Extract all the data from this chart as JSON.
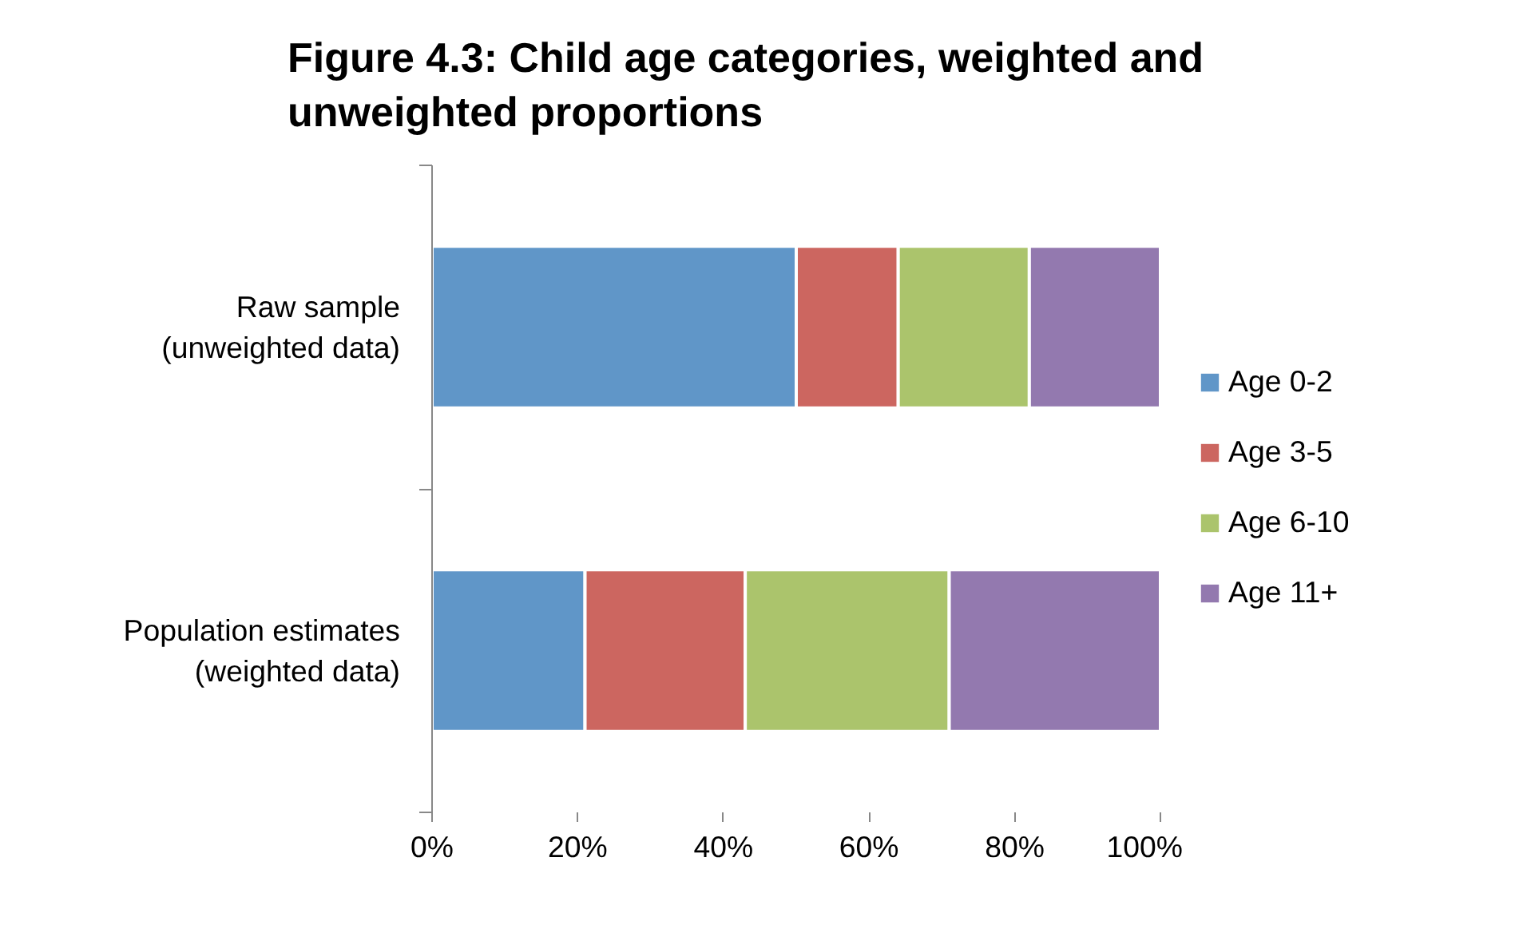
{
  "chart_data": {
    "type": "bar",
    "orientation": "horizontal",
    "stacked": true,
    "title": "Figure 4.3: Child age categories, weighted and\nunweighted proportions",
    "categories": [
      "Raw sample\n(unweighted data)",
      "Population estimates\n(weighted data)"
    ],
    "series": [
      {
        "name": "Age 0-2",
        "color": "#6096c8",
        "values": [
          50,
          21
        ]
      },
      {
        "name": "Age 3-5",
        "color": "#cc6660",
        "values": [
          14,
          22
        ]
      },
      {
        "name": "Age 6-10",
        "color": "#abc46c",
        "values": [
          18,
          28
        ]
      },
      {
        "name": "Age 11+",
        "color": "#9379af",
        "values": [
          18,
          29
        ]
      }
    ],
    "xlim": [
      0,
      100
    ],
    "xticks": [
      {
        "value": 0,
        "label": "0%"
      },
      {
        "value": 20,
        "label": "20%"
      },
      {
        "value": 40,
        "label": "40%"
      },
      {
        "value": 60,
        "label": "60%"
      },
      {
        "value": 80,
        "label": "80%"
      },
      {
        "value": 100,
        "label": "100%"
      }
    ],
    "grid": false,
    "legend": "right"
  }
}
